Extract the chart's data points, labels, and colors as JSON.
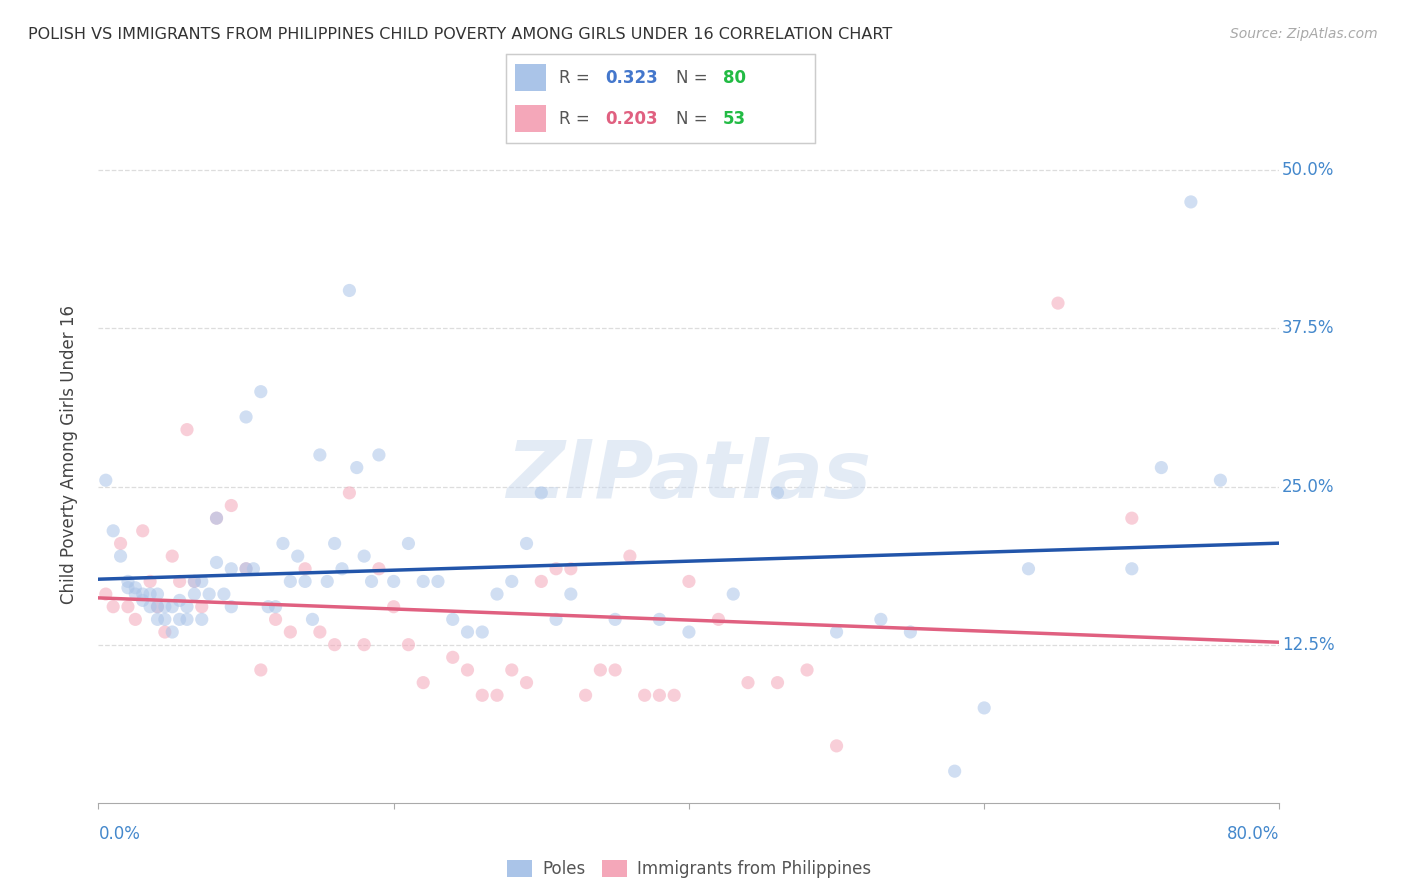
{
  "title": "POLISH VS IMMIGRANTS FROM PHILIPPINES CHILD POVERTY AMONG GIRLS UNDER 16 CORRELATION CHART",
  "source": "Source: ZipAtlas.com",
  "ylabel": "Child Poverty Among Girls Under 16",
  "xlim": [
    0.0,
    0.8
  ],
  "ylim": [
    0.0,
    0.55
  ],
  "yticks": [
    0.125,
    0.25,
    0.375,
    0.5
  ],
  "ytick_labels": [
    "12.5%",
    "25.0%",
    "37.5%",
    "50.0%"
  ],
  "background_color": "#ffffff",
  "grid_color": "#dddddd",
  "poles_color": "#aac4e8",
  "philippines_color": "#f4a7b9",
  "poles_line_color": "#2255aa",
  "philippines_line_color": "#e06080",
  "marker_size": 90,
  "marker_alpha": 0.55,
  "poles_R": 0.323,
  "poles_N": 80,
  "philippines_R": 0.203,
  "philippines_N": 53,
  "watermark": "ZIPatlas",
  "poles_x": [
    0.005,
    0.01,
    0.015,
    0.02,
    0.02,
    0.025,
    0.025,
    0.03,
    0.03,
    0.035,
    0.035,
    0.04,
    0.04,
    0.04,
    0.045,
    0.045,
    0.05,
    0.05,
    0.055,
    0.055,
    0.06,
    0.06,
    0.065,
    0.065,
    0.07,
    0.07,
    0.075,
    0.08,
    0.08,
    0.085,
    0.09,
    0.09,
    0.1,
    0.1,
    0.105,
    0.11,
    0.115,
    0.12,
    0.125,
    0.13,
    0.135,
    0.14,
    0.145,
    0.15,
    0.155,
    0.16,
    0.165,
    0.17,
    0.175,
    0.18,
    0.185,
    0.19,
    0.2,
    0.21,
    0.22,
    0.23,
    0.24,
    0.25,
    0.26,
    0.27,
    0.28,
    0.29,
    0.3,
    0.31,
    0.32,
    0.35,
    0.38,
    0.4,
    0.43,
    0.46,
    0.5,
    0.53,
    0.55,
    0.58,
    0.6,
    0.63,
    0.7,
    0.72,
    0.74,
    0.76
  ],
  "poles_y": [
    0.255,
    0.215,
    0.195,
    0.175,
    0.17,
    0.17,
    0.165,
    0.165,
    0.16,
    0.165,
    0.155,
    0.165,
    0.155,
    0.145,
    0.155,
    0.145,
    0.155,
    0.135,
    0.16,
    0.145,
    0.155,
    0.145,
    0.175,
    0.165,
    0.145,
    0.175,
    0.165,
    0.225,
    0.19,
    0.165,
    0.185,
    0.155,
    0.305,
    0.185,
    0.185,
    0.325,
    0.155,
    0.155,
    0.205,
    0.175,
    0.195,
    0.175,
    0.145,
    0.275,
    0.175,
    0.205,
    0.185,
    0.405,
    0.265,
    0.195,
    0.175,
    0.275,
    0.175,
    0.205,
    0.175,
    0.175,
    0.145,
    0.135,
    0.135,
    0.165,
    0.175,
    0.205,
    0.245,
    0.145,
    0.165,
    0.145,
    0.145,
    0.135,
    0.165,
    0.245,
    0.135,
    0.145,
    0.135,
    0.025,
    0.075,
    0.185,
    0.185,
    0.265,
    0.475,
    0.255
  ],
  "philippines_x": [
    0.005,
    0.01,
    0.015,
    0.02,
    0.025,
    0.03,
    0.035,
    0.04,
    0.045,
    0.05,
    0.055,
    0.06,
    0.065,
    0.07,
    0.08,
    0.09,
    0.1,
    0.11,
    0.12,
    0.13,
    0.14,
    0.15,
    0.16,
    0.17,
    0.18,
    0.19,
    0.2,
    0.21,
    0.22,
    0.24,
    0.25,
    0.26,
    0.27,
    0.28,
    0.29,
    0.3,
    0.31,
    0.32,
    0.33,
    0.34,
    0.35,
    0.36,
    0.37,
    0.38,
    0.39,
    0.4,
    0.42,
    0.44,
    0.46,
    0.48,
    0.5,
    0.65,
    0.7
  ],
  "philippines_y": [
    0.165,
    0.155,
    0.205,
    0.155,
    0.145,
    0.215,
    0.175,
    0.155,
    0.135,
    0.195,
    0.175,
    0.295,
    0.175,
    0.155,
    0.225,
    0.235,
    0.185,
    0.105,
    0.145,
    0.135,
    0.185,
    0.135,
    0.125,
    0.245,
    0.125,
    0.185,
    0.155,
    0.125,
    0.095,
    0.115,
    0.105,
    0.085,
    0.085,
    0.105,
    0.095,
    0.175,
    0.185,
    0.185,
    0.085,
    0.105,
    0.105,
    0.195,
    0.085,
    0.085,
    0.085,
    0.175,
    0.145,
    0.095,
    0.095,
    0.105,
    0.045,
    0.395,
    0.225
  ]
}
